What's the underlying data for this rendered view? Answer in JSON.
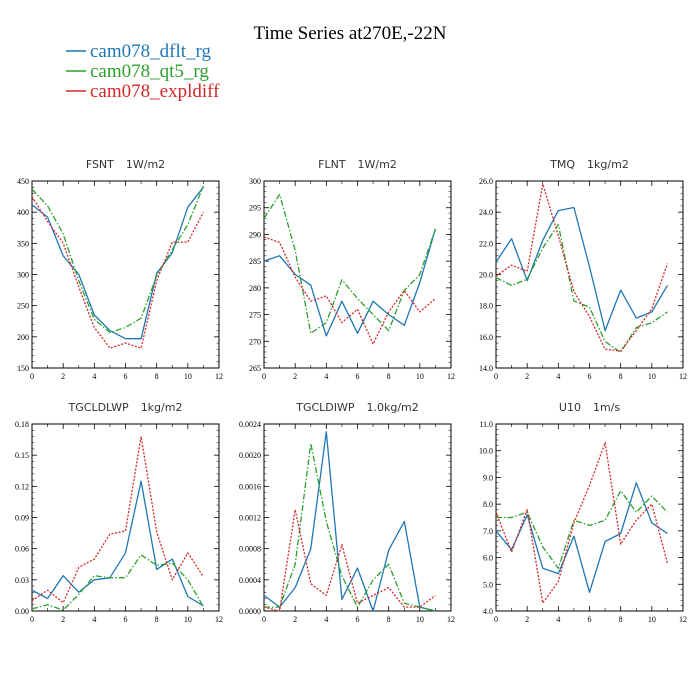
{
  "title": "Time Series at270E,-22N",
  "legend": [
    {
      "label": "cam078_dflt_rg",
      "color": "#1f77b4",
      "dash": "solid"
    },
    {
      "label": "cam078_qt5_rg",
      "color": "#2ca02c",
      "dash": "dashdot"
    },
    {
      "label": "cam078_expldiff",
      "color": "#d62728",
      "dash": "dotted"
    }
  ],
  "chart_data": [
    {
      "type": "line",
      "title": "FSNT",
      "units": "1W/m2",
      "x": [
        0,
        1,
        2,
        3,
        4,
        5,
        6,
        7,
        8,
        9,
        10,
        11
      ],
      "xlim": [
        0,
        12
      ],
      "xticks": [
        "0",
        "2",
        "4",
        "6",
        "8",
        "10",
        "12"
      ],
      "ylim": [
        150,
        450
      ],
      "yticks": [
        "150",
        "200",
        "250",
        "300",
        "350",
        "400",
        "450"
      ],
      "series": [
        {
          "name": "cam078_dflt_rg",
          "values": [
            412,
            392,
            330,
            300,
            235,
            210,
            197,
            197,
            302,
            335,
            408,
            440
          ]
        },
        {
          "name": "cam078_qt5_rg",
          "values": [
            437,
            410,
            365,
            290,
            228,
            207,
            215,
            230,
            298,
            340,
            380,
            442
          ]
        },
        {
          "name": "cam078_expldiff",
          "values": [
            425,
            385,
            350,
            280,
            215,
            182,
            190,
            182,
            290,
            352,
            352,
            400
          ]
        }
      ]
    },
    {
      "type": "line",
      "title": "FLNT",
      "units": "1W/m2",
      "x": [
        0,
        1,
        2,
        3,
        4,
        5,
        6,
        7,
        8,
        9,
        10,
        11
      ],
      "xlim": [
        0,
        12
      ],
      "xticks": [
        "0",
        "2",
        "4",
        "6",
        "8",
        "10",
        "12"
      ],
      "ylim": [
        265,
        300
      ],
      "yticks": [
        "265",
        "270",
        "275",
        "280",
        "285",
        "290",
        "295",
        "300"
      ],
      "series": [
        {
          "name": "cam078_dflt_rg",
          "values": [
            285,
            286,
            282.5,
            280.5,
            271,
            277.5,
            271.5,
            277.5,
            275,
            273,
            281,
            291
          ]
        },
        {
          "name": "cam078_qt5_rg",
          "values": [
            293,
            297.5,
            287,
            271.5,
            273.5,
            281.5,
            278,
            275,
            272,
            279.5,
            282.5,
            291
          ]
        },
        {
          "name": "cam078_expldiff",
          "values": [
            289.5,
            288.5,
            282,
            277.5,
            278.5,
            273.5,
            276,
            269.5,
            275.5,
            279.5,
            275.5,
            278
          ]
        }
      ]
    },
    {
      "type": "line",
      "title": "TMQ",
      "units": "1kg/m2",
      "x": [
        0,
        1,
        2,
        3,
        4,
        5,
        6,
        7,
        8,
        9,
        10,
        11
      ],
      "xlim": [
        0,
        12
      ],
      "xticks": [
        "0",
        "2",
        "4",
        "6",
        "8",
        "10",
        "12"
      ],
      "ylim": [
        14,
        26
      ],
      "yticks": [
        "14.0",
        "16.0",
        "18.0",
        "20.0",
        "22.0",
        "24.0",
        "26.0"
      ],
      "series": [
        {
          "name": "cam078_dflt_rg",
          "values": [
            20.8,
            22.3,
            19.6,
            22.2,
            24.1,
            24.3,
            20.5,
            16.4,
            19.0,
            17.2,
            17.6,
            19.3
          ]
        },
        {
          "name": "cam078_qt5_rg",
          "values": [
            19.8,
            19.3,
            19.7,
            21.7,
            23.2,
            18.3,
            17.9,
            15.7,
            15.0,
            16.6,
            16.9,
            17.6
          ]
        },
        {
          "name": "cam078_expldiff",
          "values": [
            19.9,
            20.6,
            20.2,
            25.8,
            22.5,
            18.9,
            17.3,
            15.2,
            15.1,
            16.4,
            17.8,
            20.7
          ]
        }
      ]
    },
    {
      "type": "line",
      "title": "TGCLDLWP",
      "units": "1kg/m2",
      "x": [
        0,
        1,
        2,
        3,
        4,
        5,
        6,
        7,
        8,
        9,
        10,
        11
      ],
      "xlim": [
        0,
        12
      ],
      "xticks": [
        "0",
        "2",
        "4",
        "6",
        "8",
        "10",
        "12"
      ],
      "ylim": [
        0,
        0.18
      ],
      "yticks": [
        "0.00",
        "0.03",
        "0.06",
        "0.09",
        "0.12",
        "0.15",
        "0.18"
      ],
      "series": [
        {
          "name": "cam078_dflt_rg",
          "values": [
            0.02,
            0.012,
            0.034,
            0.018,
            0.03,
            0.032,
            0.056,
            0.125,
            0.04,
            0.05,
            0.014,
            0.005
          ]
        },
        {
          "name": "cam078_qt5_rg",
          "values": [
            0.002,
            0.006,
            0.001,
            0.016,
            0.034,
            0.032,
            0.032,
            0.054,
            0.044,
            0.046,
            0.03,
            0.004
          ]
        },
        {
          "name": "cam078_expldiff",
          "values": [
            0.01,
            0.02,
            0.008,
            0.042,
            0.05,
            0.074,
            0.077,
            0.168,
            0.076,
            0.03,
            0.056,
            0.033
          ]
        }
      ]
    },
    {
      "type": "line",
      "title": "TGCLDIWP",
      "units": "1.0kg/m2",
      "x": [
        0,
        1,
        2,
        3,
        4,
        5,
        6,
        7,
        8,
        9,
        10,
        11
      ],
      "xlim": [
        0,
        12
      ],
      "xticks": [
        "0",
        "2",
        "4",
        "6",
        "8",
        "10",
        "12"
      ],
      "ylim": [
        0,
        0.0024
      ],
      "yticks": [
        "0.0000",
        "0.0004",
        "0.0008",
        "0.0012",
        "0.0016",
        "0.0020",
        "0.0024"
      ],
      "series": [
        {
          "name": "cam078_dflt_rg",
          "values": [
            0.0002,
            5e-05,
            0.0003,
            0.0008,
            0.0023,
            0.00015,
            0.00055,
            0.0,
            0.00078,
            0.00115,
            5e-05,
            0.0
          ]
        },
        {
          "name": "cam078_qt5_rg",
          "values": [
            5e-05,
            5e-05,
            0.0006,
            0.00215,
            0.00115,
            0.00045,
            5e-05,
            0.0004,
            0.0006,
            0.0001,
            5e-05,
            0.0
          ]
        },
        {
          "name": "cam078_expldiff",
          "values": [
            5e-05,
            0.0,
            0.0013,
            0.00035,
            0.0002,
            0.00085,
            0.0001,
            0.0002,
            0.0003,
            5e-05,
            5e-05,
            0.0002
          ]
        }
      ]
    },
    {
      "type": "line",
      "title": "U10",
      "units": "1m/s",
      "x": [
        0,
        1,
        2,
        3,
        4,
        5,
        6,
        7,
        8,
        9,
        10,
        11
      ],
      "xlim": [
        0,
        12
      ],
      "xticks": [
        "0",
        "2",
        "4",
        "6",
        "8",
        "10",
        "12"
      ],
      "ylim": [
        4,
        11
      ],
      "yticks": [
        "4.0",
        "5.0",
        "6.0",
        "7.0",
        "8.0",
        "9.0",
        "10.0",
        "11.0"
      ],
      "series": [
        {
          "name": "cam078_dflt_rg",
          "values": [
            7.0,
            6.3,
            7.6,
            5.6,
            5.4,
            6.8,
            4.7,
            6.6,
            6.9,
            8.8,
            7.3,
            6.9
          ]
        },
        {
          "name": "cam078_qt5_rg",
          "values": [
            7.5,
            7.5,
            7.7,
            6.4,
            5.6,
            7.4,
            7.2,
            7.4,
            8.5,
            7.7,
            8.3,
            7.7
          ]
        },
        {
          "name": "cam078_expldiff",
          "values": [
            7.7,
            6.2,
            7.8,
            4.3,
            5.1,
            7.3,
            8.7,
            10.3,
            6.5,
            7.4,
            8.0,
            5.8
          ]
        }
      ]
    }
  ]
}
